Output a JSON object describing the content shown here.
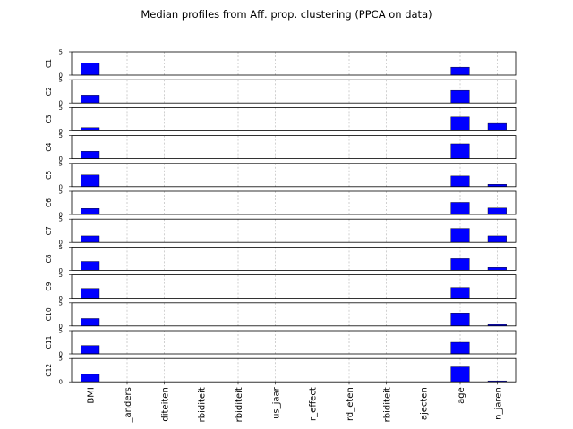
{
  "chart_data": {
    "type": "bar",
    "title": "Median profiles from Aff. prop. clustering (PPCA on data)",
    "categories": [
      "BMI",
      "_anders",
      "diteiten",
      "rbiditeit",
      "rbiditeit",
      "us_jaar",
      "r_effect",
      "rd_eten",
      "rbiditeit",
      "ajecten",
      "age",
      "n_jaren"
    ],
    "ylim": [
      0,
      5
    ],
    "yticks": [
      0,
      5
    ],
    "bar_color": "#0000ff",
    "grid": "x-dashed",
    "series": [
      {
        "name": "C1",
        "values": [
          2.6,
          0,
          0,
          0,
          0,
          0,
          0,
          0,
          0,
          0,
          1.7,
          0
        ]
      },
      {
        "name": "C2",
        "values": [
          1.7,
          0,
          0,
          0,
          0,
          0,
          0,
          0,
          0,
          0,
          2.7,
          0
        ]
      },
      {
        "name": "C3",
        "values": [
          0.7,
          0,
          0,
          0,
          0,
          0,
          0,
          0,
          0,
          0,
          3.0,
          1.6
        ]
      },
      {
        "name": "C4",
        "values": [
          1.6,
          0,
          0,
          0,
          0,
          0,
          0,
          0,
          0,
          0,
          3.2,
          0
        ]
      },
      {
        "name": "C5",
        "values": [
          2.5,
          0,
          0,
          0,
          0,
          0,
          0,
          0,
          0,
          0,
          2.3,
          0.5
        ]
      },
      {
        "name": "C6",
        "values": [
          1.3,
          0,
          0,
          0,
          0,
          0,
          0,
          0,
          0,
          0,
          2.6,
          1.4
        ]
      },
      {
        "name": "C7",
        "values": [
          1.4,
          0,
          0,
          0,
          0,
          0,
          0,
          0,
          0,
          0,
          3.0,
          1.4
        ]
      },
      {
        "name": "C8",
        "values": [
          1.9,
          0,
          0,
          0,
          0,
          0,
          0,
          0,
          0,
          0,
          2.5,
          0.6
        ]
      },
      {
        "name": "C9",
        "values": [
          2.1,
          0,
          0,
          0,
          0,
          0,
          0,
          0,
          0,
          0,
          2.3,
          0
        ]
      },
      {
        "name": "C10",
        "values": [
          1.6,
          0,
          0,
          0,
          0,
          0,
          0,
          0,
          0,
          0,
          2.8,
          0.3
        ]
      },
      {
        "name": "C11",
        "values": [
          1.8,
          0,
          0,
          0,
          0,
          0,
          0,
          0,
          0,
          0,
          2.5,
          0
        ]
      },
      {
        "name": "C12",
        "values": [
          1.6,
          0,
          0,
          0,
          0,
          0,
          0,
          0,
          0,
          0,
          3.2,
          0.2
        ]
      }
    ]
  }
}
